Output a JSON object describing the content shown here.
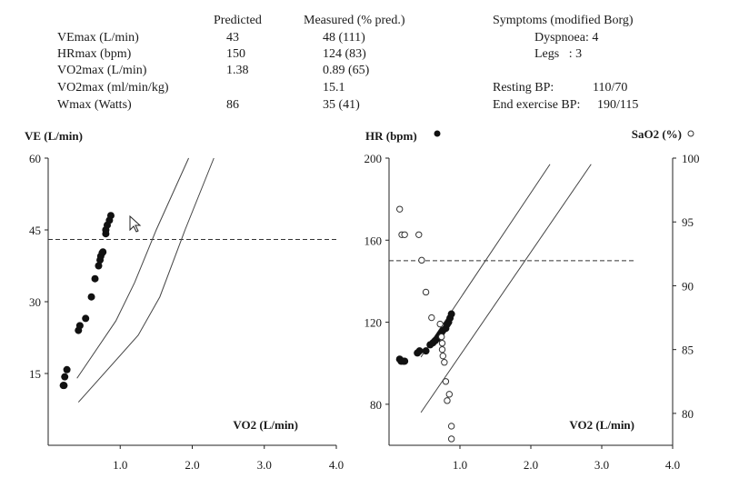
{
  "summary": {
    "header_predicted": "Predicted",
    "header_measured": "Measured (% pred.)",
    "rows": [
      {
        "label": "VEmax (L/min)",
        "predicted": "43",
        "measured": "48 (111)"
      },
      {
        "label": "HRmax (bpm)",
        "predicted": "150",
        "measured": "124 (83)"
      },
      {
        "label": "VO2max (L/min)",
        "predicted": "1.38",
        "measured": "0.89 (65)"
      },
      {
        "label": "VO2max (ml/min/kg)",
        "predicted": "",
        "measured": "15.1"
      },
      {
        "label": "Wmax (Watts)",
        "predicted": "86",
        "measured": "35 (41)"
      }
    ],
    "symptoms_title": "Symptoms (modified Borg)",
    "dyspnoea": "Dyspnoea: 4",
    "legs": "Legs   : 3",
    "resting_bp_label": "Resting BP:",
    "resting_bp_value": "110/70",
    "end_bp_label": "End exercise BP:",
    "end_bp_value": "190/115"
  },
  "chart_data": [
    {
      "type": "scatter",
      "title": "",
      "ylabel": "VE (L/min)",
      "xlabel": "VO2 (L/min)",
      "xlim": [
        0,
        4.0
      ],
      "ylim": [
        0,
        60
      ],
      "xticks": [
        "1.0",
        "2.0",
        "3.0",
        "4.0"
      ],
      "xtick_values": [
        1.0,
        2.0,
        3.0,
        4.0
      ],
      "yticks": [
        "15",
        "30",
        "45",
        "60"
      ],
      "ytick_values": [
        15,
        30,
        45,
        60
      ],
      "reference_line": {
        "style": "dashed",
        "y": 43
      },
      "bounds": [
        {
          "x": [
            0.4,
            0.94,
            1.2,
            1.5,
            1.95
          ],
          "y": [
            14,
            26,
            34,
            45,
            60
          ]
        },
        {
          "x": [
            0.42,
            1.25,
            1.55,
            1.9,
            2.3
          ],
          "y": [
            9,
            23,
            31,
            45,
            60
          ]
        }
      ],
      "series": [
        {
          "marker": "filled",
          "x": [
            0.21,
            0.22,
            0.23,
            0.26,
            0.42,
            0.44,
            0.52,
            0.6,
            0.65,
            0.7,
            0.72,
            0.73,
            0.75,
            0.76,
            0.8,
            0.8,
            0.82,
            0.85,
            0.87
          ],
          "y": [
            12.5,
            12.5,
            14.3,
            15.8,
            24,
            25,
            26.5,
            31,
            34.8,
            37.5,
            38.7,
            39.5,
            40.2,
            40.4,
            44.2,
            45,
            46,
            47,
            48
          ]
        }
      ]
    },
    {
      "type": "scatter",
      "title": "",
      "ylabel": "HR (bpm)",
      "y2label": "SaO2 (%)",
      "xlabel": "VO2 (L/min)",
      "xlim": [
        0,
        4.0
      ],
      "ylim": [
        60,
        200
      ],
      "y2lim": [
        77.5,
        100
      ],
      "xticks": [
        "1.0",
        "2.0",
        "3.0",
        "4.0"
      ],
      "xtick_values": [
        1.0,
        2.0,
        3.0,
        4.0
      ],
      "yticks": [
        "80",
        "120",
        "160",
        "200"
      ],
      "ytick_values": [
        80,
        120,
        160,
        200
      ],
      "y2ticks": [
        "80",
        "85",
        "90",
        "95",
        "100"
      ],
      "y2tick_values": [
        80,
        85,
        90,
        95,
        100
      ],
      "reference_line": {
        "style": "dashed",
        "y": 150
      },
      "bounds": [
        {
          "x": [
            0.45,
            2.27
          ],
          "y": [
            103,
            197
          ]
        },
        {
          "x": [
            0.45,
            2.85
          ],
          "y": [
            76,
            197
          ]
        }
      ],
      "series": [
        {
          "name": "HR (bpm)",
          "marker": "filled",
          "axis": "left",
          "x": [
            0.15,
            0.17,
            0.2,
            0.22,
            0.4,
            0.43,
            0.52,
            0.58,
            0.62,
            0.65,
            0.68,
            0.7,
            0.72,
            0.74,
            0.76,
            0.8,
            0.82,
            0.84,
            0.86,
            0.88
          ],
          "y": [
            102,
            101,
            101,
            101,
            105,
            106,
            106,
            109,
            110,
            111,
            112,
            113,
            114,
            115,
            116,
            117,
            119,
            120,
            122,
            124
          ]
        },
        {
          "name": "SaO2 (%)",
          "marker": "open",
          "axis": "right",
          "x": [
            0.15,
            0.18,
            0.22,
            0.42,
            0.46,
            0.52,
            0.6,
            0.72,
            0.74,
            0.75,
            0.75,
            0.76,
            0.78,
            0.8,
            0.82,
            0.85,
            0.88,
            0.88
          ],
          "y": [
            96,
            94,
            94,
            94,
            92,
            89.5,
            87.5,
            87,
            86,
            85.5,
            85,
            84.5,
            84,
            82.5,
            81,
            81.5,
            79,
            78
          ]
        }
      ]
    }
  ]
}
